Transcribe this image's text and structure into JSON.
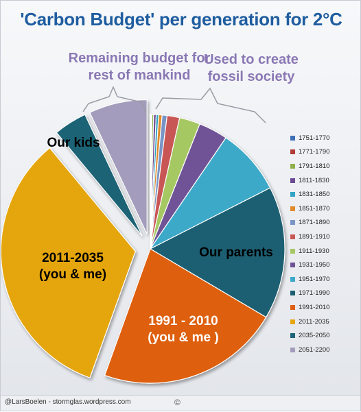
{
  "chart_data": {
    "type": "pie",
    "title": "'Carbon Budget' per generation for 2°C",
    "categories": [
      "1751-1770",
      "1771-1790",
      "1791-1810",
      "1811-1830",
      "1831-1850",
      "1851-1870",
      "1871-1890",
      "1891-1910",
      "1911-1930",
      "1931-1950",
      "1951-1970",
      "1971-1990",
      "1991-2010",
      "2011-2035",
      "2035-2050",
      "2051-2200"
    ],
    "values": [
      0.1,
      0.1,
      0.2,
      0.3,
      0.3,
      0.4,
      0.6,
      1.5,
      2.5,
      3.5,
      8.0,
      16.0,
      22.0,
      33.5,
      4.0,
      7.0
    ],
    "colors": [
      "#3f6fb5",
      "#b13b37",
      "#8fb04a",
      "#6c4a94",
      "#33a4c3",
      "#e08a2c",
      "#7995c6",
      "#c85755",
      "#a6c864",
      "#6f5296",
      "#3ea9c9",
      "#1d5f72",
      "#de5f0f",
      "#e5a60f",
      "#1d6376",
      "#a39cbc"
    ],
    "exploded": [
      13,
      14,
      15
    ],
    "annotations": [
      "Remaining budget for rest of mankind",
      "Used to create fossil society"
    ],
    "slice_labels": {
      "kids": "Our kids",
      "me_line1": "2011-2035",
      "me_line2": "(you & me)",
      "parents": "Our parents",
      "gen_line1": "1991 - 2010",
      "gen_line2": "(you &  me )"
    },
    "legend_position": "right"
  },
  "footer": {
    "credit": "@LarsBoelen - stormglas.wordpress.com",
    "copyright_symbol": "©"
  }
}
